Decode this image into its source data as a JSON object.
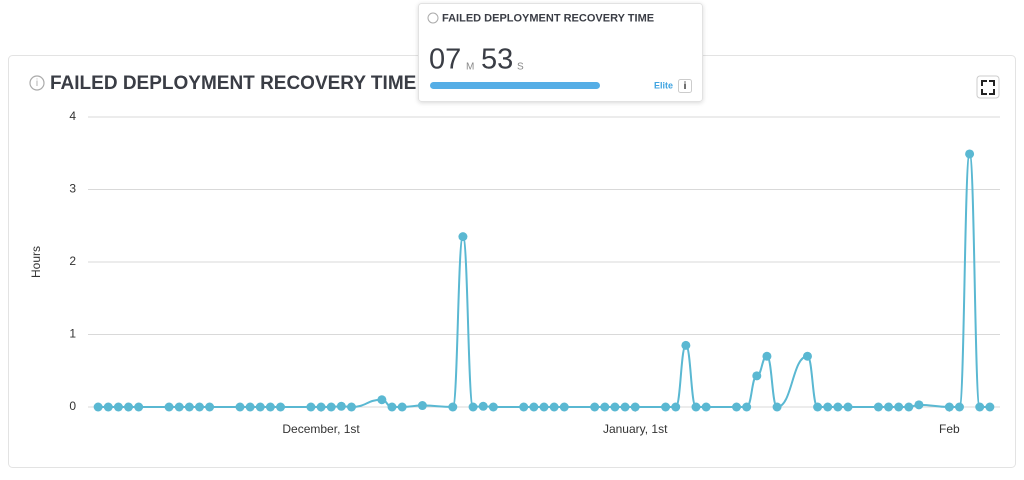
{
  "widget": {
    "title": "FAILED DEPLOYMENT RECOVERY TIME",
    "minutes": "07",
    "minutes_unit": "M",
    "seconds": "53",
    "seconds_unit": "S",
    "rating": "Elite",
    "info": "i"
  },
  "chart_data": {
    "type": "line",
    "title": "FAILED DEPLOYMENT RECOVERY TIME",
    "y_label": "Hours",
    "color": "#5ab8d2",
    "grid": true,
    "x": [
      -22,
      -21,
      -20,
      -19,
      -18,
      -15,
      -14,
      -13,
      -12,
      -11,
      -8,
      -7,
      -6,
      -5,
      -4,
      -1,
      0,
      1,
      2,
      3,
      6,
      7,
      8,
      10,
      13,
      14,
      15,
      16,
      17,
      20,
      21,
      22,
      23,
      24,
      27,
      28,
      29,
      30,
      31,
      34,
      35,
      36,
      37,
      38,
      41,
      42,
      43,
      44,
      45,
      48,
      49,
      50,
      51,
      52,
      55,
      56,
      57,
      58,
      59,
      62,
      63,
      64,
      65,
      66
    ],
    "values": [
      0,
      0,
      0,
      0,
      0,
      0,
      0,
      0,
      0,
      0,
      0,
      0,
      0,
      0,
      0,
      0,
      0,
      0,
      0.01,
      0,
      0.1,
      0,
      0,
      0.02,
      0,
      2.35,
      0,
      0.01,
      0,
      0,
      0,
      0,
      0,
      0,
      0,
      0,
      0,
      0,
      0,
      0,
      0,
      0.85,
      0,
      0,
      0,
      0,
      0.43,
      0.7,
      0,
      0.7,
      0,
      0,
      0,
      0,
      0,
      0,
      0,
      0,
      0.03,
      0,
      0,
      3.49,
      0,
      0
    ],
    "xlim": [
      -23,
      67
    ],
    "xticks": [
      {
        "value": 0,
        "label": "December, 1st"
      },
      {
        "value": 31,
        "label": "January, 1st"
      },
      {
        "value": 62,
        "label": "Feb"
      }
    ],
    "ylim": [
      0,
      4
    ],
    "yticks": [
      0,
      1,
      2,
      3,
      4
    ]
  }
}
